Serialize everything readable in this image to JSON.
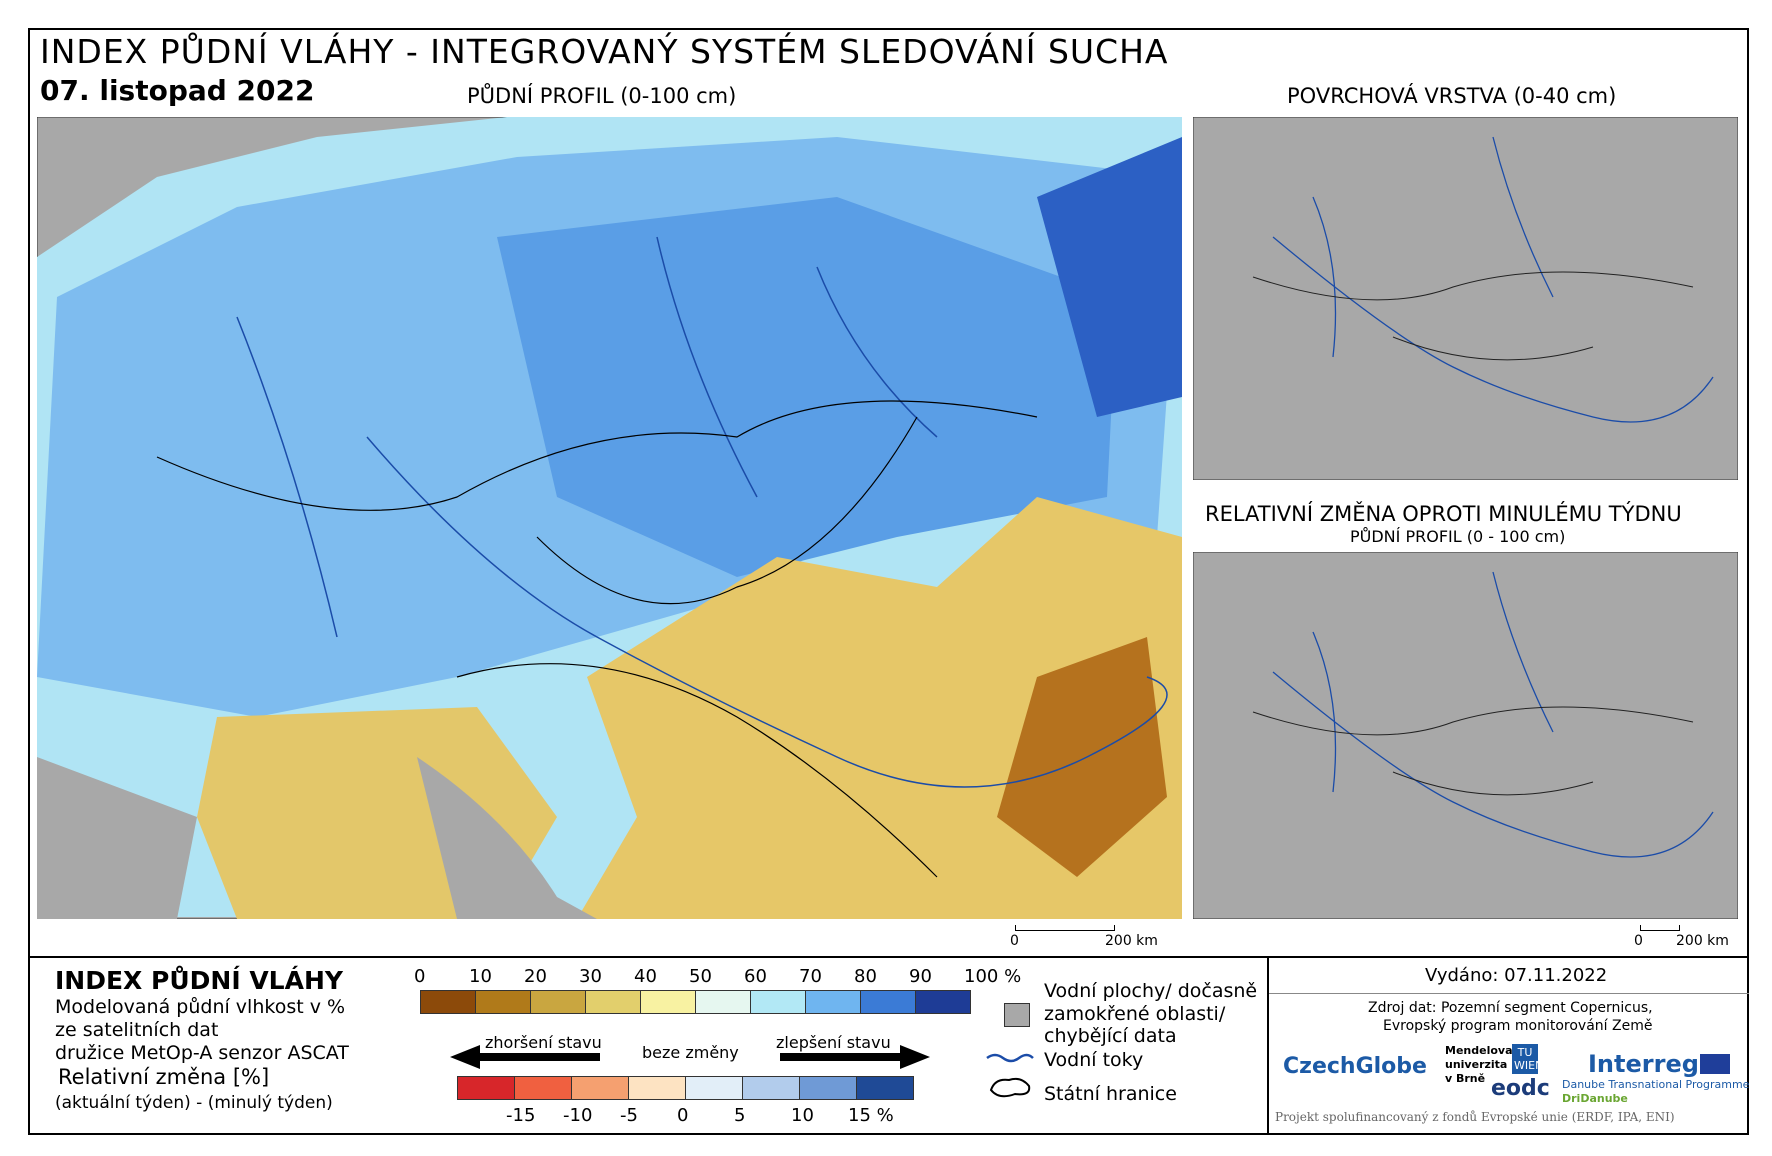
{
  "header": {
    "title": "INDEX PŮDNÍ VLÁHY - INTEGROVANÝ SYSTÉM SLEDOVÁNÍ SUCHA",
    "date": "07. listopad 2022"
  },
  "maps": {
    "main": {
      "title": "PŮDNÍ PROFIL (0-100 cm)",
      "scale": [
        "0",
        "200 km"
      ]
    },
    "surface": {
      "title": "POVRCHOVÁ VRSTVA (0-40 cm)"
    },
    "change": {
      "title": "RELATIVNÍ ZMĚNA OPROTI MINULÉMU TÝDNU",
      "subtitle": "PŮDNÍ PROFIL (0 - 100 cm)",
      "scale": [
        "0",
        "200 km"
      ]
    }
  },
  "legend": {
    "title": "INDEX PŮDNÍ VLÁHY",
    "description": [
      "Modelovaná půdní vlhkost v %",
      "ze satelitních dat",
      "družice MetOp-A senzor ASCAT"
    ],
    "change_title": "Relativní změna [%]",
    "change_description": "(aktuální týden) - (minulý týden)",
    "index_ticks": [
      "0",
      "10",
      "20",
      "30",
      "40",
      "50",
      "60",
      "70",
      "80",
      "90",
      "100 %"
    ],
    "change_arrows": [
      "zhoršení stavu",
      "beze změny",
      "zlepšení stavu"
    ],
    "change_ticks": [
      "-15",
      "-10",
      "-5",
      "0",
      "5",
      "10",
      "15 %"
    ],
    "key": {
      "water": [
        "Vodní plochy/ dočasně",
        "zamokřené oblasti/",
        "chybějící data"
      ],
      "rivers": "Vodní toky",
      "borders": "Státní hranice"
    }
  },
  "info": {
    "issued": "Vydáno: 07.11.2022",
    "source": [
      "Zdroj dat: Pozemní segment Copernicus,",
      "Evropský program monitorování Země"
    ],
    "logos": [
      "CzechGlobe",
      "Mendelova",
      "univerzita",
      "v Brně",
      "TU WIEN",
      "eodc",
      "Interreg",
      "Danube Transnational Programme",
      "DriDanube"
    ],
    "footer": "Projekt spolufinancovaný z fondů Evropské unie (ERDF, IPA, ENI)"
  }
}
